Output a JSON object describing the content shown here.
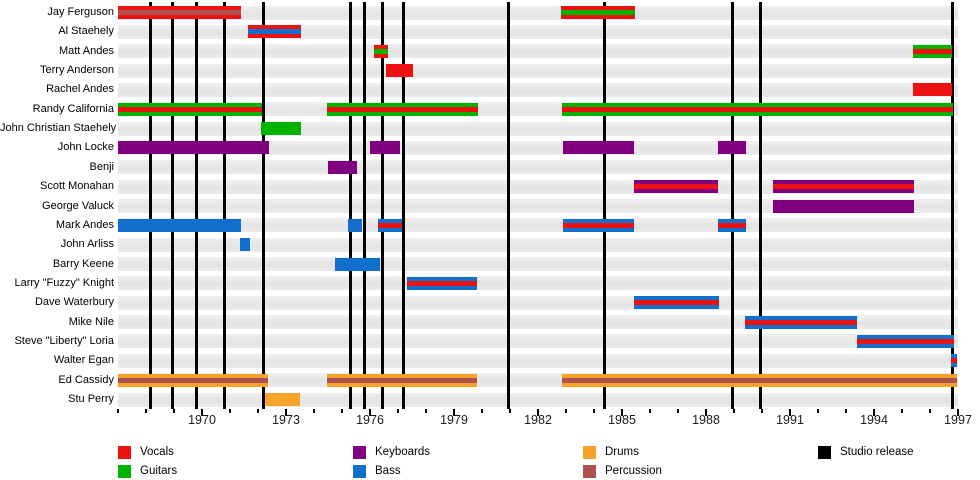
{
  "colors": {
    "vocals": "#EE1111",
    "guitars": "#00B300",
    "keyboards": "#800080",
    "bass": "#1170CC",
    "drums": "#F7A32A",
    "percussion": "#AE5151",
    "release": "#000000",
    "row_band": "#E8E8E8",
    "axis_text": "#1A1A1A"
  },
  "chart_data": {
    "type": "timeline",
    "title": "",
    "xlabel": "",
    "axis": {
      "start_year": 1967,
      "end_year": 1997,
      "labeled_years": [
        1970,
        1973,
        1976,
        1979,
        1982,
        1985,
        1988,
        1991,
        1994,
        1997
      ],
      "minor_tick_every": 1,
      "grid": "off",
      "legend_position": "bottom"
    },
    "members": [
      {
        "name": "Jay Ferguson",
        "segments": [
          {
            "start": 1967.0,
            "end": 1971.4,
            "c": "vocals",
            "s": "percussion"
          },
          {
            "start": 1982.82,
            "end": 1985.46,
            "c": "vocals",
            "s": "guitars"
          }
        ]
      },
      {
        "name": "Al Staehely",
        "segments": [
          {
            "start": 1971.64,
            "end": 1973.54,
            "c": "vocals",
            "s": "bass"
          }
        ]
      },
      {
        "name": "Matt Andes",
        "segments": [
          {
            "start": 1976.14,
            "end": 1976.64,
            "c": "vocals",
            "s": "guitars"
          },
          {
            "start": 1995.39,
            "end": 1996.79,
            "c": "guitars",
            "s": "vocals"
          }
        ]
      },
      {
        "name": "Terry Anderson",
        "segments": [
          {
            "start": 1976.57,
            "end": 1977.54,
            "c": "vocals"
          }
        ]
      },
      {
        "name": "Rachel Andes",
        "segments": [
          {
            "start": 1995.39,
            "end": 1996.79,
            "c": "vocals"
          }
        ]
      },
      {
        "name": "Randy California",
        "segments": [
          {
            "start": 1967.0,
            "end": 1972.14,
            "c": "guitars",
            "s": "vocals"
          },
          {
            "start": 1974.46,
            "end": 1979.86,
            "c": "guitars",
            "s": "vocals"
          },
          {
            "start": 1982.86,
            "end": 1996.82,
            "c": "guitars",
            "s": "vocals"
          }
        ]
      },
      {
        "name": "John Christian Staehely",
        "segments": [
          {
            "start": 1972.11,
            "end": 1973.54,
            "c": "guitars"
          }
        ]
      },
      {
        "name": "John Locke",
        "segments": [
          {
            "start": 1967.0,
            "end": 1972.39,
            "c": "keyboards"
          },
          {
            "start": 1976.0,
            "end": 1977.07,
            "c": "keyboards"
          },
          {
            "start": 1982.89,
            "end": 1985.43,
            "c": "keyboards"
          },
          {
            "start": 1988.43,
            "end": 1989.43,
            "c": "keyboards"
          }
        ]
      },
      {
        "name": "Benji",
        "segments": [
          {
            "start": 1974.5,
            "end": 1975.54,
            "c": "keyboards"
          }
        ]
      },
      {
        "name": "Scott Monahan",
        "segments": [
          {
            "start": 1985.43,
            "end": 1988.43,
            "c": "keyboards",
            "s": "vocals"
          },
          {
            "start": 1990.39,
            "end": 1995.43,
            "c": "keyboards",
            "s": "vocals"
          }
        ]
      },
      {
        "name": "George Valuck",
        "segments": [
          {
            "start": 1990.39,
            "end": 1995.43,
            "c": "keyboards"
          }
        ]
      },
      {
        "name": "Mark Andes",
        "segments": [
          {
            "start": 1967.0,
            "end": 1971.39,
            "c": "bass"
          },
          {
            "start": 1975.21,
            "end": 1975.71,
            "c": "bass"
          },
          {
            "start": 1976.29,
            "end": 1977.14,
            "c": "bass",
            "s": "vocals"
          },
          {
            "start": 1982.89,
            "end": 1985.43,
            "c": "bass",
            "s": "vocals"
          },
          {
            "start": 1988.43,
            "end": 1989.43,
            "c": "bass",
            "s": "vocals"
          }
        ]
      },
      {
        "name": "John Arliss",
        "segments": [
          {
            "start": 1971.36,
            "end": 1971.71,
            "c": "bass"
          }
        ]
      },
      {
        "name": "Barry Keene",
        "segments": [
          {
            "start": 1974.75,
            "end": 1976.36,
            "c": "bass"
          }
        ]
      },
      {
        "name": "Larry \"Fuzzy\" Knight",
        "segments": [
          {
            "start": 1977.32,
            "end": 1979.82,
            "c": "bass",
            "s": "vocals"
          }
        ]
      },
      {
        "name": "Dave Waterbury",
        "segments": [
          {
            "start": 1985.43,
            "end": 1988.46,
            "c": "bass",
            "s": "vocals"
          }
        ]
      },
      {
        "name": "Mike Nile",
        "segments": [
          {
            "start": 1989.39,
            "end": 1993.39,
            "c": "bass",
            "s": "vocals"
          }
        ]
      },
      {
        "name": "Steve \"Liberty\" Loria",
        "segments": [
          {
            "start": 1993.39,
            "end": 1996.86,
            "c": "bass",
            "s": "vocals"
          }
        ]
      },
      {
        "name": "Walter Egan",
        "segments": [
          {
            "start": 1996.75,
            "end": 1996.96,
            "c": "bass",
            "s": "vocals"
          }
        ]
      },
      {
        "name": "Ed Cassidy",
        "segments": [
          {
            "start": 1967.0,
            "end": 1972.36,
            "c": "drums",
            "s": "percussion"
          },
          {
            "start": 1974.46,
            "end": 1979.82,
            "c": "drums",
            "s": "percussion"
          },
          {
            "start": 1982.86,
            "end": 1996.96,
            "c": "drums",
            "s": "percussion"
          }
        ]
      },
      {
        "name": "Stu Perry",
        "segments": [
          {
            "start": 1972.25,
            "end": 1973.5,
            "c": "drums"
          }
        ]
      }
    ],
    "studio_releases": [
      1968.15,
      1968.96,
      1969.79,
      1970.82,
      1972.18,
      1975.29,
      1975.79,
      1976.46,
      1977.18,
      1980.96,
      1984.36,
      1988.93,
      1989.93,
      1996.79
    ]
  },
  "legend": {
    "items": [
      {
        "label": "Vocals",
        "color": "vocals"
      },
      {
        "label": "Guitars",
        "color": "guitars"
      },
      {
        "label": "Keyboards",
        "color": "keyboards"
      },
      {
        "label": "Bass",
        "color": "bass"
      },
      {
        "label": "Drums",
        "color": "drums"
      },
      {
        "label": "Percussion",
        "color": "percussion"
      },
      {
        "label": "Studio release",
        "color": "release"
      }
    ]
  }
}
